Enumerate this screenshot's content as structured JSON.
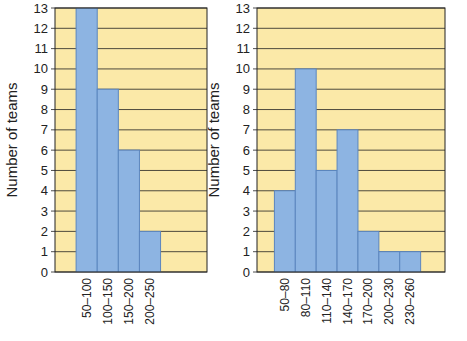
{
  "chart_data": [
    {
      "type": "histogram",
      "ylabel": "Number of teams",
      "categories": [
        "50–100",
        "100–150",
        "150–200",
        "200–250"
      ],
      "bins": [
        50,
        100,
        150,
        200,
        250
      ],
      "values": [
        13,
        9,
        6,
        2
      ],
      "color": "#8db4e2",
      "xlim": [
        0,
        360
      ],
      "ylim": [
        0,
        13
      ],
      "yticks": [
        0,
        1,
        2,
        3,
        4,
        5,
        6,
        7,
        8,
        9,
        10,
        11,
        12,
        13
      ],
      "grid": true
    },
    {
      "type": "histogram",
      "ylabel": "Number of teams",
      "categories": [
        "50–80",
        "80–110",
        "110–140",
        "140–170",
        "170–200",
        "200–230",
        "230–260"
      ],
      "bins": [
        50,
        80,
        110,
        140,
        170,
        200,
        230,
        260
      ],
      "values": [
        4,
        10,
        5,
        7,
        2,
        1,
        1
      ],
      "color": "#8db4e2",
      "xlim": [
        25,
        295
      ],
      "ylim": [
        0,
        13
      ],
      "yticks": [
        0,
        1,
        2,
        3,
        4,
        5,
        6,
        7,
        8,
        9,
        10,
        11,
        12,
        13
      ],
      "grid": true
    }
  ]
}
